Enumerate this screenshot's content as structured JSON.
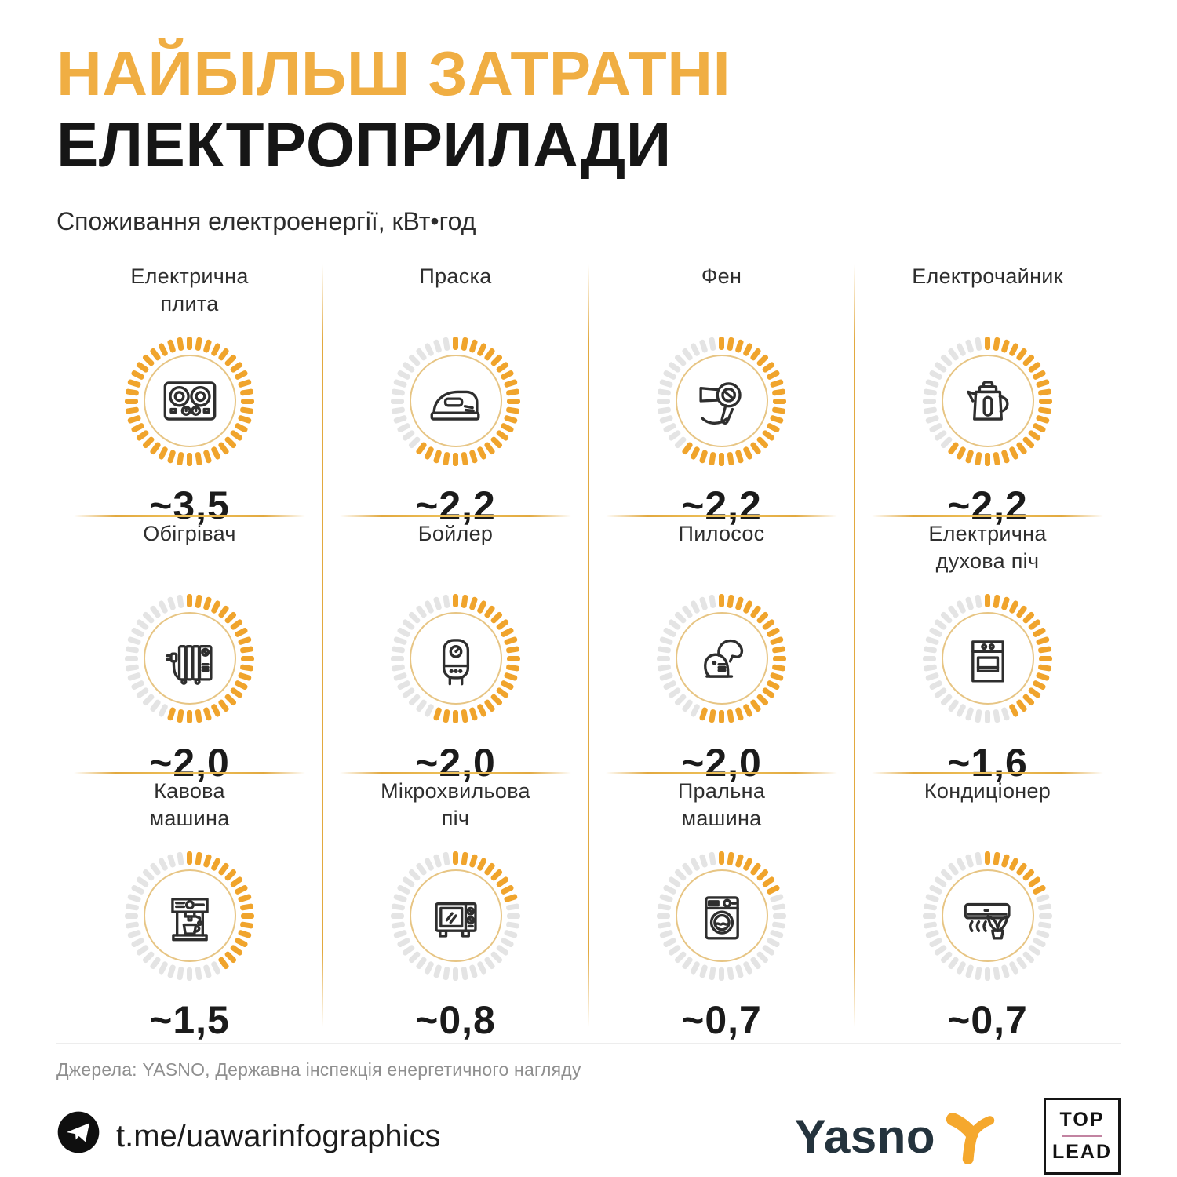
{
  "header": {
    "title_line1": "НАЙБІЛЬШ ЗАТРАТНІ",
    "title_line2": "ЕЛЕКТРОПРИЛАДИ",
    "subtitle": "Споживання електроенергії, кВт•год"
  },
  "chart_data": {
    "type": "bar",
    "title": "НАЙБІЛЬШ ЗАТРАТНІ ЕЛЕКТРОПРИЛАДИ",
    "subtitle": "Споживання електроенергії, кВт•год",
    "unit": "кВт•год",
    "max": 3.5,
    "gauge_ticks": 40,
    "layout": "4x3 grid of radial tick gauges; orange fill fraction = value/3.5, clockwise from top",
    "categories": [
      "Електрична плита",
      "Праска",
      "Фен",
      "Електрочайник",
      "Обігрівач",
      "Бойлер",
      "Пилосос",
      "Електрична духова піч",
      "Кавова машина",
      "Мікрохвильова піч",
      "Пральна машина",
      "Кондиціонер"
    ],
    "values": [
      3.5,
      2.2,
      2.2,
      2.2,
      2.0,
      2.0,
      2.0,
      1.6,
      1.5,
      0.8,
      0.7,
      0.7
    ],
    "items": [
      {
        "label": "Електрична плита",
        "label_lines": [
          "Електрична",
          "плита"
        ],
        "value": 3.5,
        "display": "~3,5",
        "icon": "electric-stove-icon"
      },
      {
        "label": "Праска",
        "label_lines": [
          "Праска"
        ],
        "value": 2.2,
        "display": "~2,2",
        "icon": "iron-icon"
      },
      {
        "label": "Фен",
        "label_lines": [
          "Фен"
        ],
        "value": 2.2,
        "display": "~2,2",
        "icon": "hair-dryer-icon"
      },
      {
        "label": "Електрочайник",
        "label_lines": [
          "Електрочайник"
        ],
        "value": 2.2,
        "display": "~2,2",
        "icon": "electric-kettle-icon"
      },
      {
        "label": "Обігрівач",
        "label_lines": [
          "Обігрівач"
        ],
        "value": 2.0,
        "display": "~2,0",
        "icon": "heater-icon"
      },
      {
        "label": "Бойлер",
        "label_lines": [
          "Бойлер"
        ],
        "value": 2.0,
        "display": "~2,0",
        "icon": "boiler-icon"
      },
      {
        "label": "Пилосос",
        "label_lines": [
          "Пилосос"
        ],
        "value": 2.0,
        "display": "~2,0",
        "icon": "vacuum-cleaner-icon"
      },
      {
        "label": "Електрична духова піч",
        "label_lines": [
          "Електрична",
          "духова піч"
        ],
        "value": 1.6,
        "display": "~1,6",
        "icon": "electric-oven-icon"
      },
      {
        "label": "Кавова машина",
        "label_lines": [
          "Кавова",
          "машина"
        ],
        "value": 1.5,
        "display": "~1,5",
        "icon": "coffee-machine-icon"
      },
      {
        "label": "Мікрохвильова піч",
        "label_lines": [
          "Мікрохвильова",
          "піч"
        ],
        "value": 0.8,
        "display": "~0,8",
        "icon": "microwave-icon"
      },
      {
        "label": "Пральна машина",
        "label_lines": [
          "Пральна",
          "машина"
        ],
        "value": 0.7,
        "display": "~0,7",
        "icon": "washing-machine-icon"
      },
      {
        "label": "Кондиціонер",
        "label_lines": [
          "Кондиціонер"
        ],
        "value": 0.7,
        "display": "~0,7",
        "icon": "air-conditioner-icon"
      }
    ]
  },
  "footer": {
    "sources": "Джерела: YASNO, Державна інспекція енергетичного нагляду",
    "telegram": "t.me/uawarinfographics",
    "yasno_wordmark": "Yasno",
    "toplead_top": "TOP",
    "toplead_bottom": "LEAD"
  },
  "colors": {
    "accent": "#F0A42C",
    "title_accent": "#F0AE43",
    "tick_empty": "#E4E4E4",
    "gauge_ring": "#E7C584",
    "text_dark": "#1B1B1B",
    "text_label": "#2E2E2E",
    "text_muted": "#8F8F8F",
    "yasno_navy": "#24333D",
    "yasno_orange": "#F5A82D",
    "toplead_divider": "#C283A1",
    "divider_gold": "#E2A93F"
  }
}
